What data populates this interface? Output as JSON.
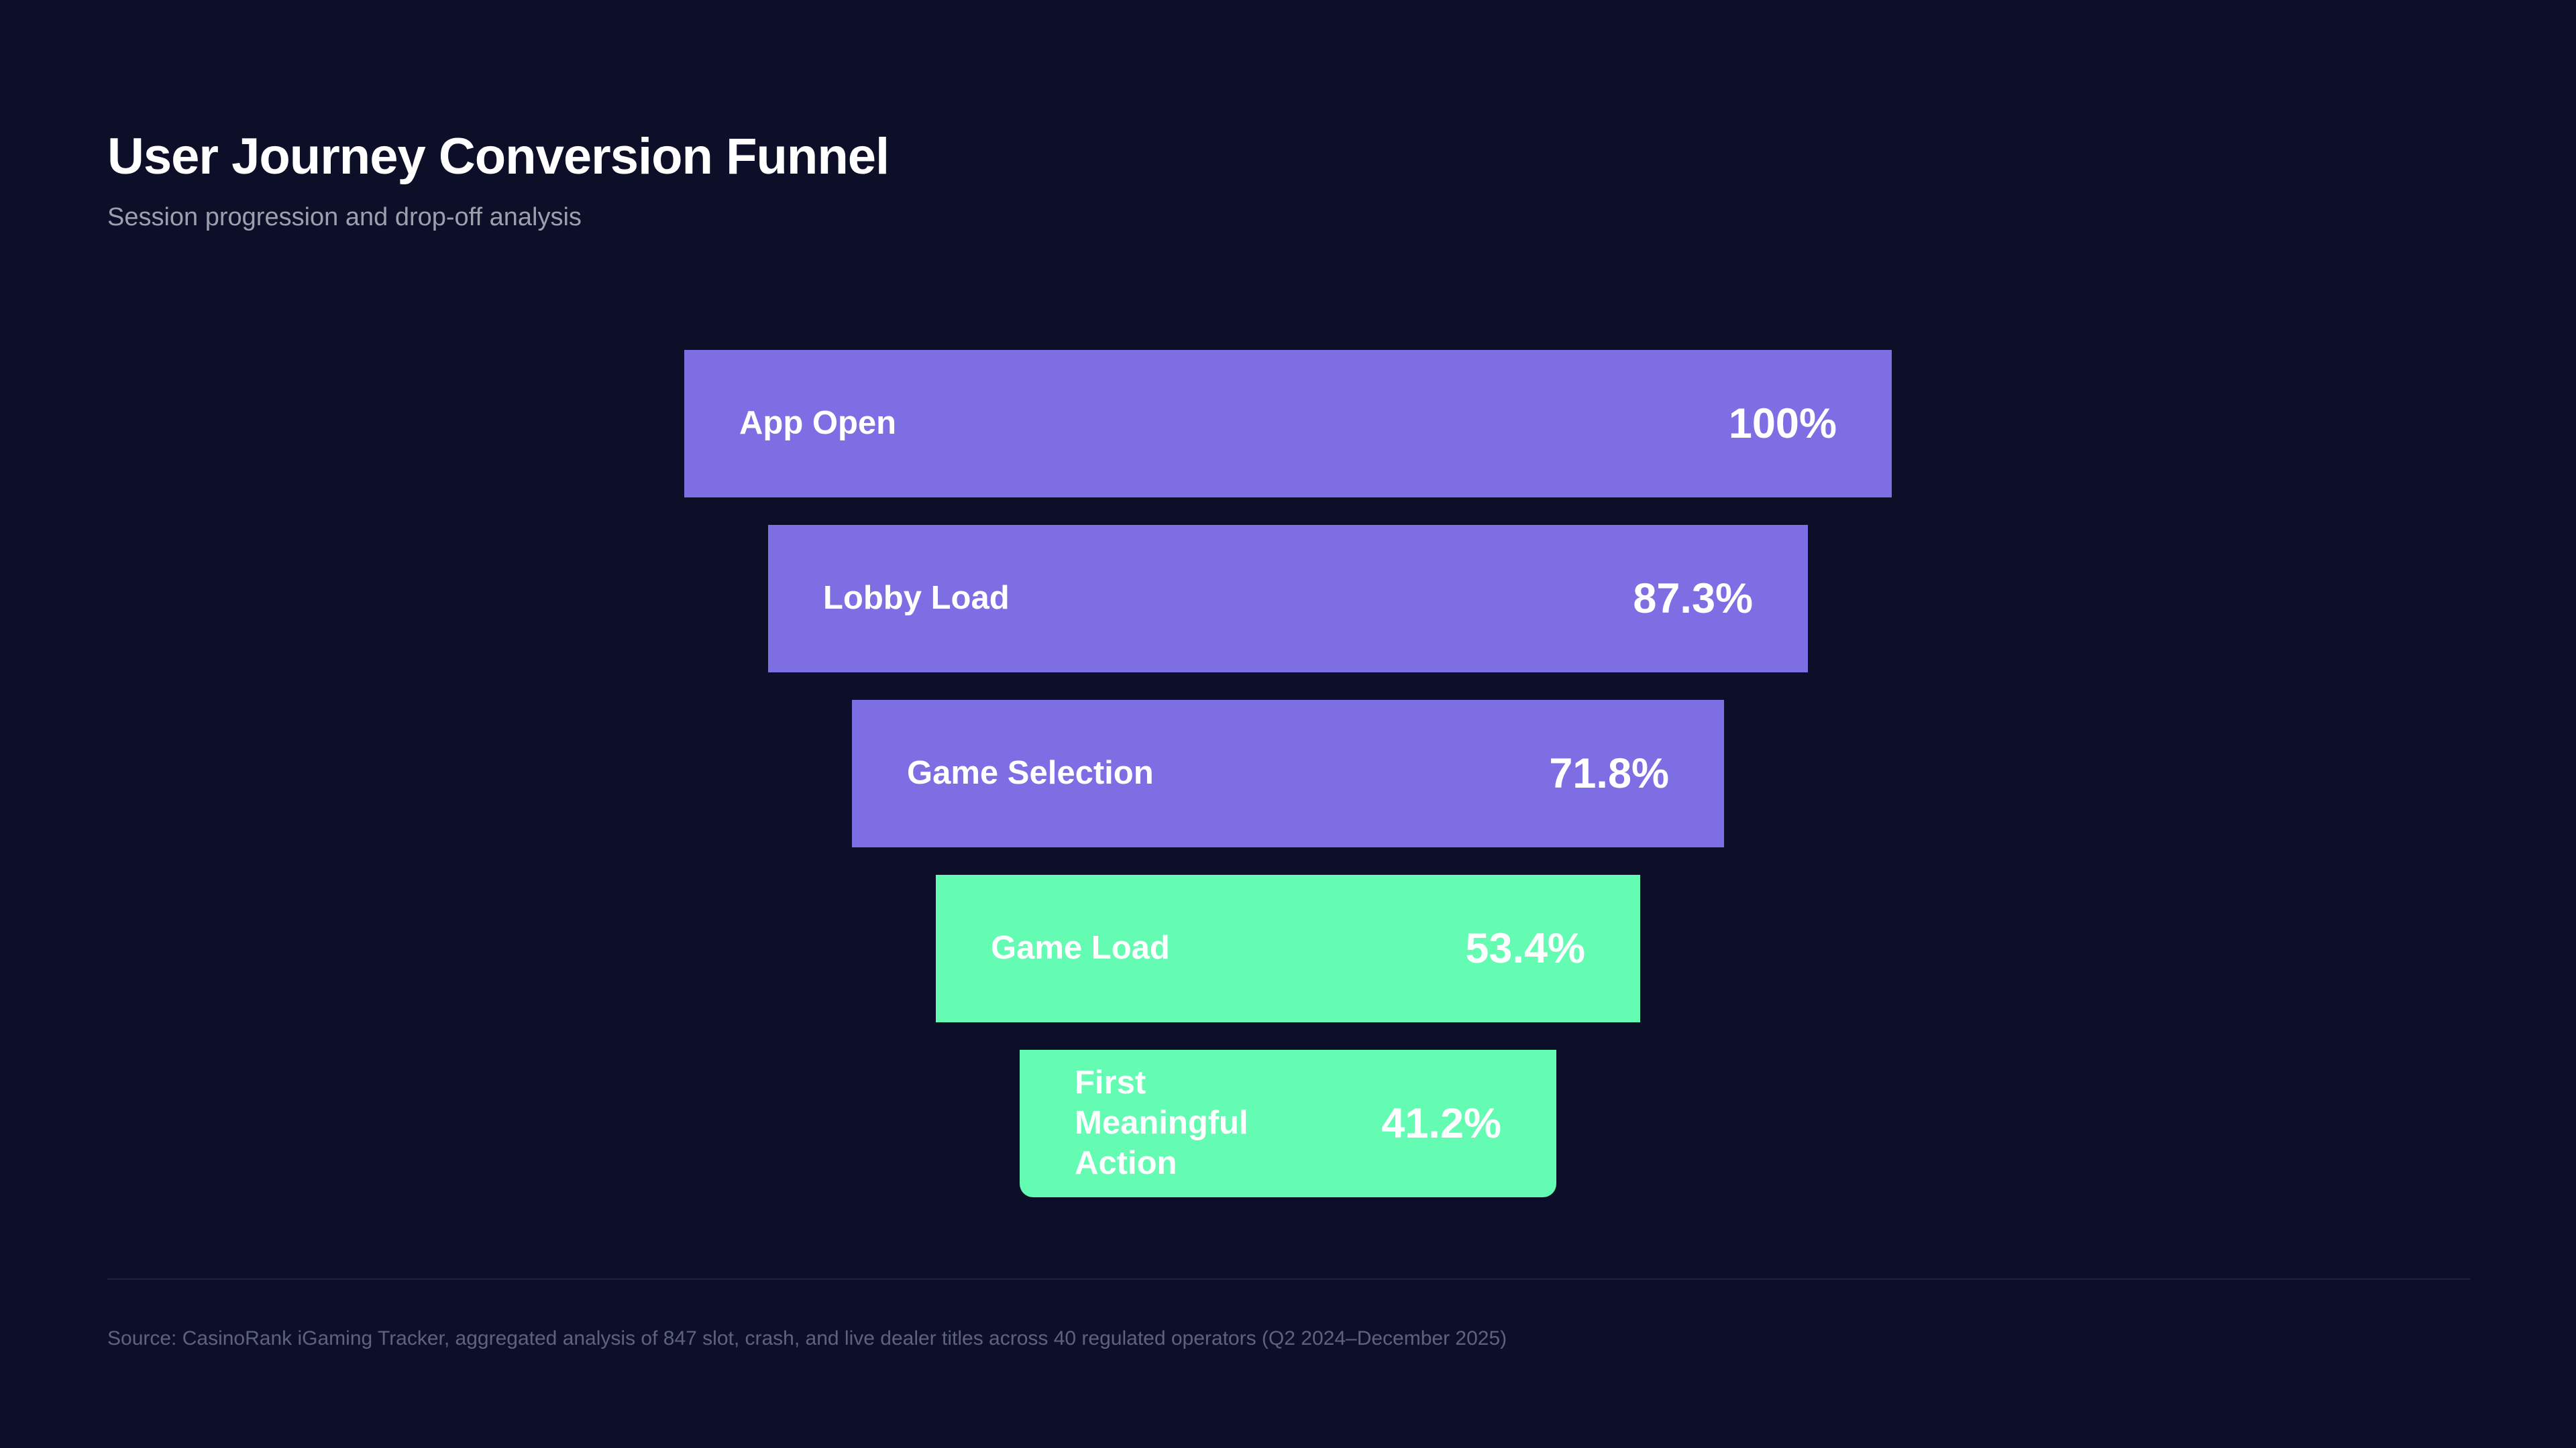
{
  "page": {
    "background": "#0d0f28"
  },
  "header": {
    "title": "User Journey Conversion Funnel",
    "subtitle": "Session progression and drop-off analysis"
  },
  "chart_data": {
    "type": "bar",
    "variant": "funnel",
    "orientation": "horizontal-centered",
    "title": "User Journey Conversion Funnel",
    "subtitle": "Session progression and drop-off analysis",
    "categories": [
      "App Open",
      "Lobby Load",
      "Game Selection",
      "Game Load",
      "First Meaningful Action"
    ],
    "values": [
      100,
      87.3,
      71.8,
      53.4,
      41.2
    ],
    "value_labels": [
      "100%",
      "87.3%",
      "71.8%",
      "53.4%",
      "41.2%"
    ],
    "bar_colors": [
      "#7d6ee3",
      "#7d6ee3",
      "#7d6ee3",
      "#63fcb2",
      "#63fcb2"
    ],
    "colors": {
      "stage_purple": "#7d6ee3",
      "stage_green": "#63fcb2",
      "label_text": "#ffffff"
    },
    "legend": "none",
    "grid": false,
    "axis_labels": "none"
  },
  "footer": {
    "source": "Source: CasinoRank iGaming Tracker, aggregated analysis of 847 slot, crash, and live dealer titles across 40 regulated operators (Q2 2024–December 2025)"
  }
}
